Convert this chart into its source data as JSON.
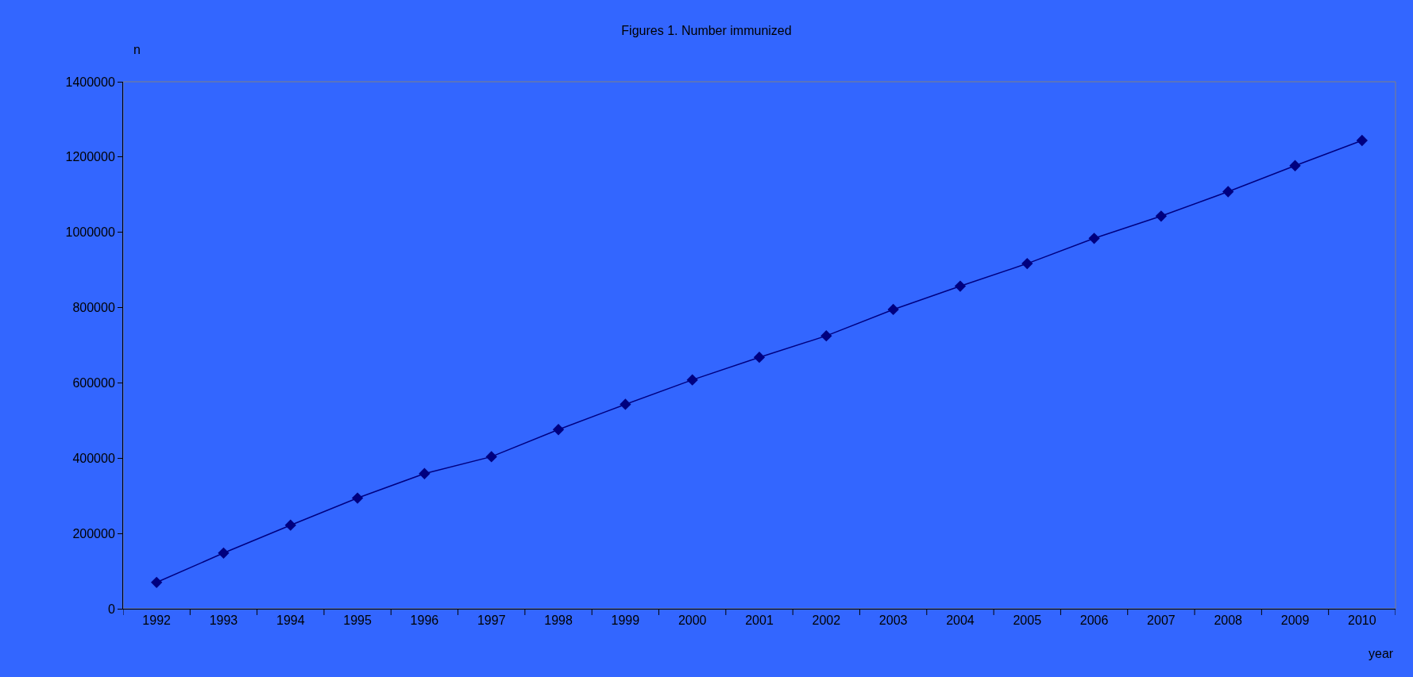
{
  "chart_data": {
    "type": "line",
    "title": "Figures 1. Number immunized",
    "xlabel": "year",
    "ylabel": "n",
    "categories": [
      "1992",
      "1993",
      "1994",
      "1995",
      "1996",
      "1997",
      "1998",
      "1999",
      "2000",
      "2001",
      "2002",
      "2003",
      "2004",
      "2005",
      "2006",
      "2007",
      "2008",
      "2009",
      "2010"
    ],
    "series": [
      {
        "color": "#000080",
        "values": [
          70000,
          148000,
          222000,
          294000,
          359000,
          404000,
          476000,
          543000,
          608000,
          668000,
          725000,
          795000,
          857000,
          917000,
          984000,
          1043000,
          1108000,
          1177000,
          1244000
        ]
      }
    ],
    "ylim": [
      0,
      1400000
    ],
    "yticks": [
      0,
      200000,
      400000,
      600000,
      800000,
      1000000,
      1200000,
      1400000
    ],
    "grid": false,
    "marker": "diamond",
    "line_style": "solid"
  }
}
